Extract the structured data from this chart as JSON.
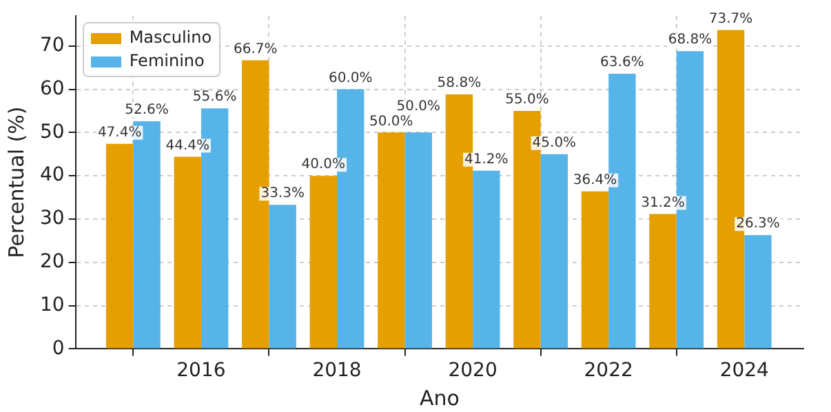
{
  "chart_data": {
    "type": "bar",
    "xlabel": "Ano",
    "ylabel": "Percentual (%)",
    "x": [
      2015,
      2016,
      2017,
      2018,
      2019,
      2020,
      2021,
      2022,
      2023,
      2024
    ],
    "series": [
      {
        "name": "Masculino",
        "color": "#e69f00",
        "values": [
          47.4,
          44.4,
          66.7,
          40.0,
          50.0,
          58.8,
          55.0,
          36.4,
          31.2,
          73.7
        ],
        "value_labels": [
          "47.4%",
          "44.4%",
          "66.7%",
          "40.0%",
          "50.0%",
          "58.8%",
          "55.0%",
          "36.4%",
          "31.2%",
          "73.7%"
        ]
      },
      {
        "name": "Feminino",
        "color": "#56b4e9",
        "values": [
          52.6,
          55.6,
          33.3,
          60.0,
          50.0,
          41.2,
          45.0,
          63.6,
          68.8,
          26.3
        ],
        "value_labels": [
          "52.6%",
          "55.6%",
          "33.3%",
          "60.0%",
          "50.0%",
          "41.2%",
          "45.0%",
          "63.6%",
          "68.8%",
          "26.3%"
        ]
      }
    ],
    "xlim": [
      2014.15,
      2024.87
    ],
    "xticks": [
      2016,
      2018,
      2020,
      2022,
      2024
    ],
    "ylim": [
      0,
      77
    ],
    "yticks": [
      0,
      10,
      20,
      30,
      40,
      50,
      60,
      70
    ],
    "grid": true,
    "legend": "top left"
  }
}
